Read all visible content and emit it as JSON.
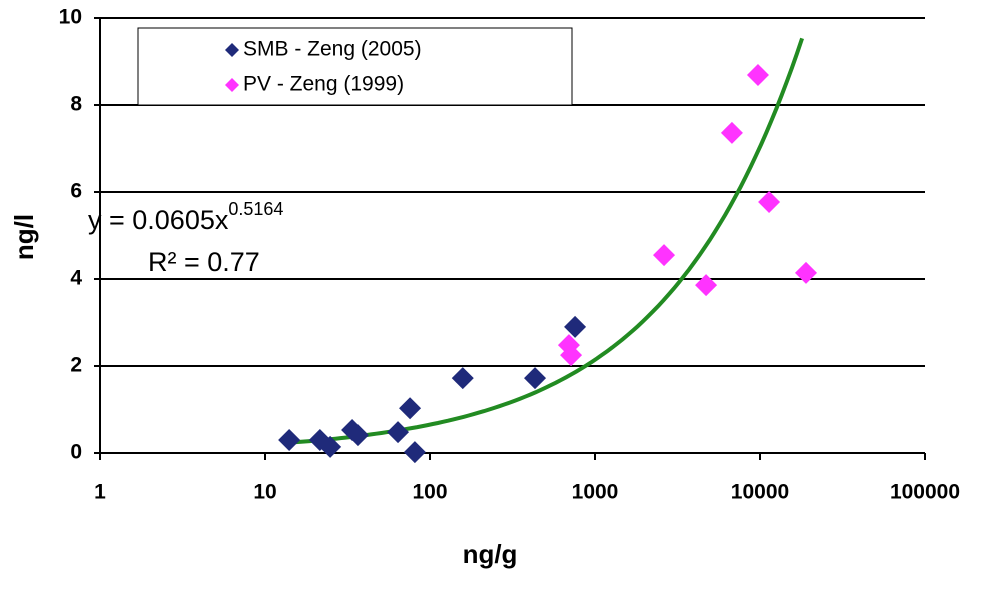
{
  "chart_data": {
    "type": "scatter",
    "x_label": "ng/g",
    "y_label": "ng/l",
    "xlim": [
      1,
      100000
    ],
    "xticks": [
      1,
      10,
      100,
      1000,
      10000,
      100000
    ],
    "x_log": true,
    "ylim": [
      0,
      10
    ],
    "yticks": [
      0,
      2,
      4,
      6,
      8,
      10
    ],
    "grid": true,
    "legend": "top-left",
    "series": [
      {
        "name": "SMB - Zeng (2005)",
        "color": "#1f2a7a",
        "x": [
          14,
          21.5,
          24.8,
          33.7,
          36.6,
          64,
          75.7,
          81,
          158,
          433,
          757
        ],
        "values": [
          0.3,
          0.3,
          0.14,
          0.53,
          0.41,
          0.48,
          1.03,
          0.02,
          1.72,
          1.72,
          2.9
        ]
      },
      {
        "name": "PV - Zeng (1999)",
        "color": "#ff33ff",
        "x": [
          695,
          716,
          2620,
          4710,
          6760,
          9720,
          11350,
          19000
        ],
        "values": [
          2.48,
          2.25,
          4.55,
          3.86,
          7.36,
          8.69,
          5.77,
          4.14
        ]
      }
    ],
    "trendline": {
      "coefficient": 0.0605,
      "exponent": 0.5164,
      "xlim": [
        14,
        18000
      ],
      "color": "#228b22",
      "label": "y = 0.0605x",
      "label_superscript": "0.5164",
      "r2_label": "R² = 0.77"
    }
  }
}
